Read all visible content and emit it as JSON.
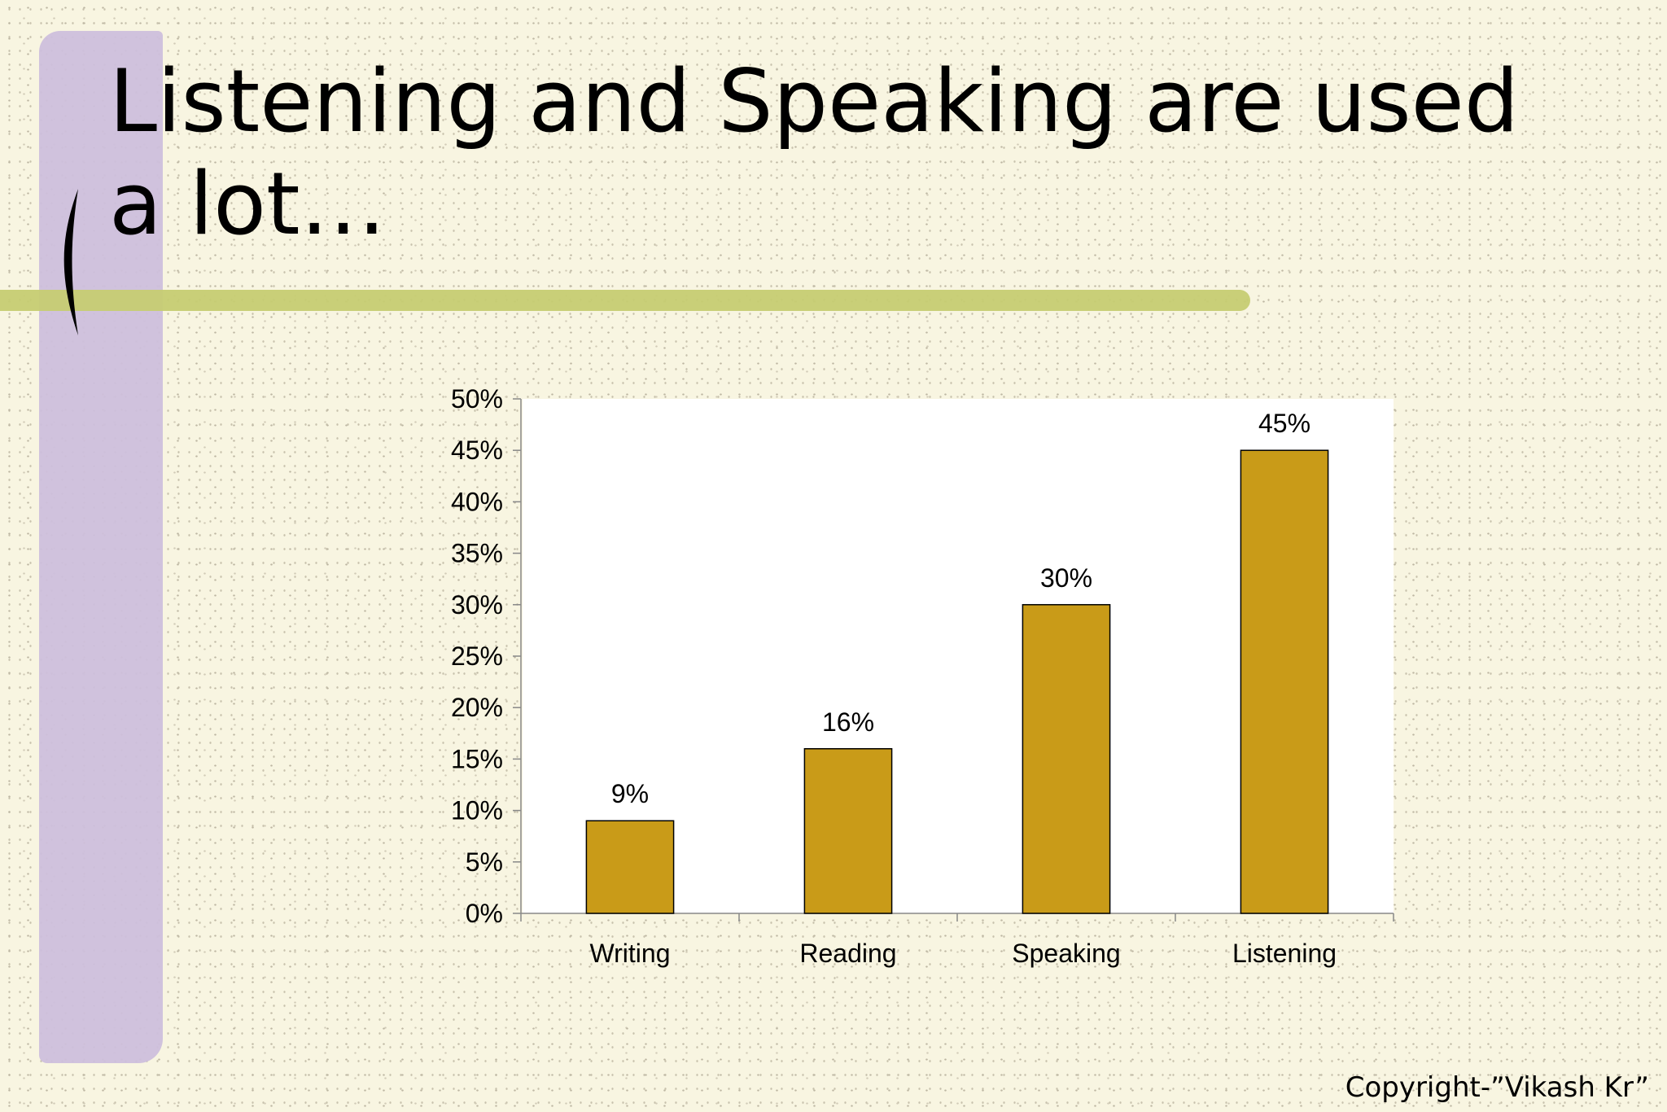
{
  "slide": {
    "title": "Listening and Speaking are used a lot…",
    "copyright": "Copyright-”Vikash Kr”"
  },
  "colors": {
    "background": "#f8f5e1",
    "purple_bar": "#cdbfdc",
    "green_line": "#c6cc72",
    "bar_fill": "#c99b18",
    "plot_area": "#ffffff"
  },
  "chart_data": {
    "type": "bar",
    "categories": [
      "Writing",
      "Reading",
      "Speaking",
      "Listening"
    ],
    "values": [
      0.09,
      0.16,
      0.3,
      0.45
    ],
    "data_labels": [
      "9%",
      "16%",
      "30%",
      "45%"
    ],
    "ylim": [
      0,
      0.5
    ],
    "y_ticks": [
      "0%",
      "5%",
      "10%",
      "15%",
      "20%",
      "25%",
      "30%",
      "35%",
      "40%",
      "45%",
      "50%"
    ],
    "grid": false,
    "legend": "none"
  }
}
